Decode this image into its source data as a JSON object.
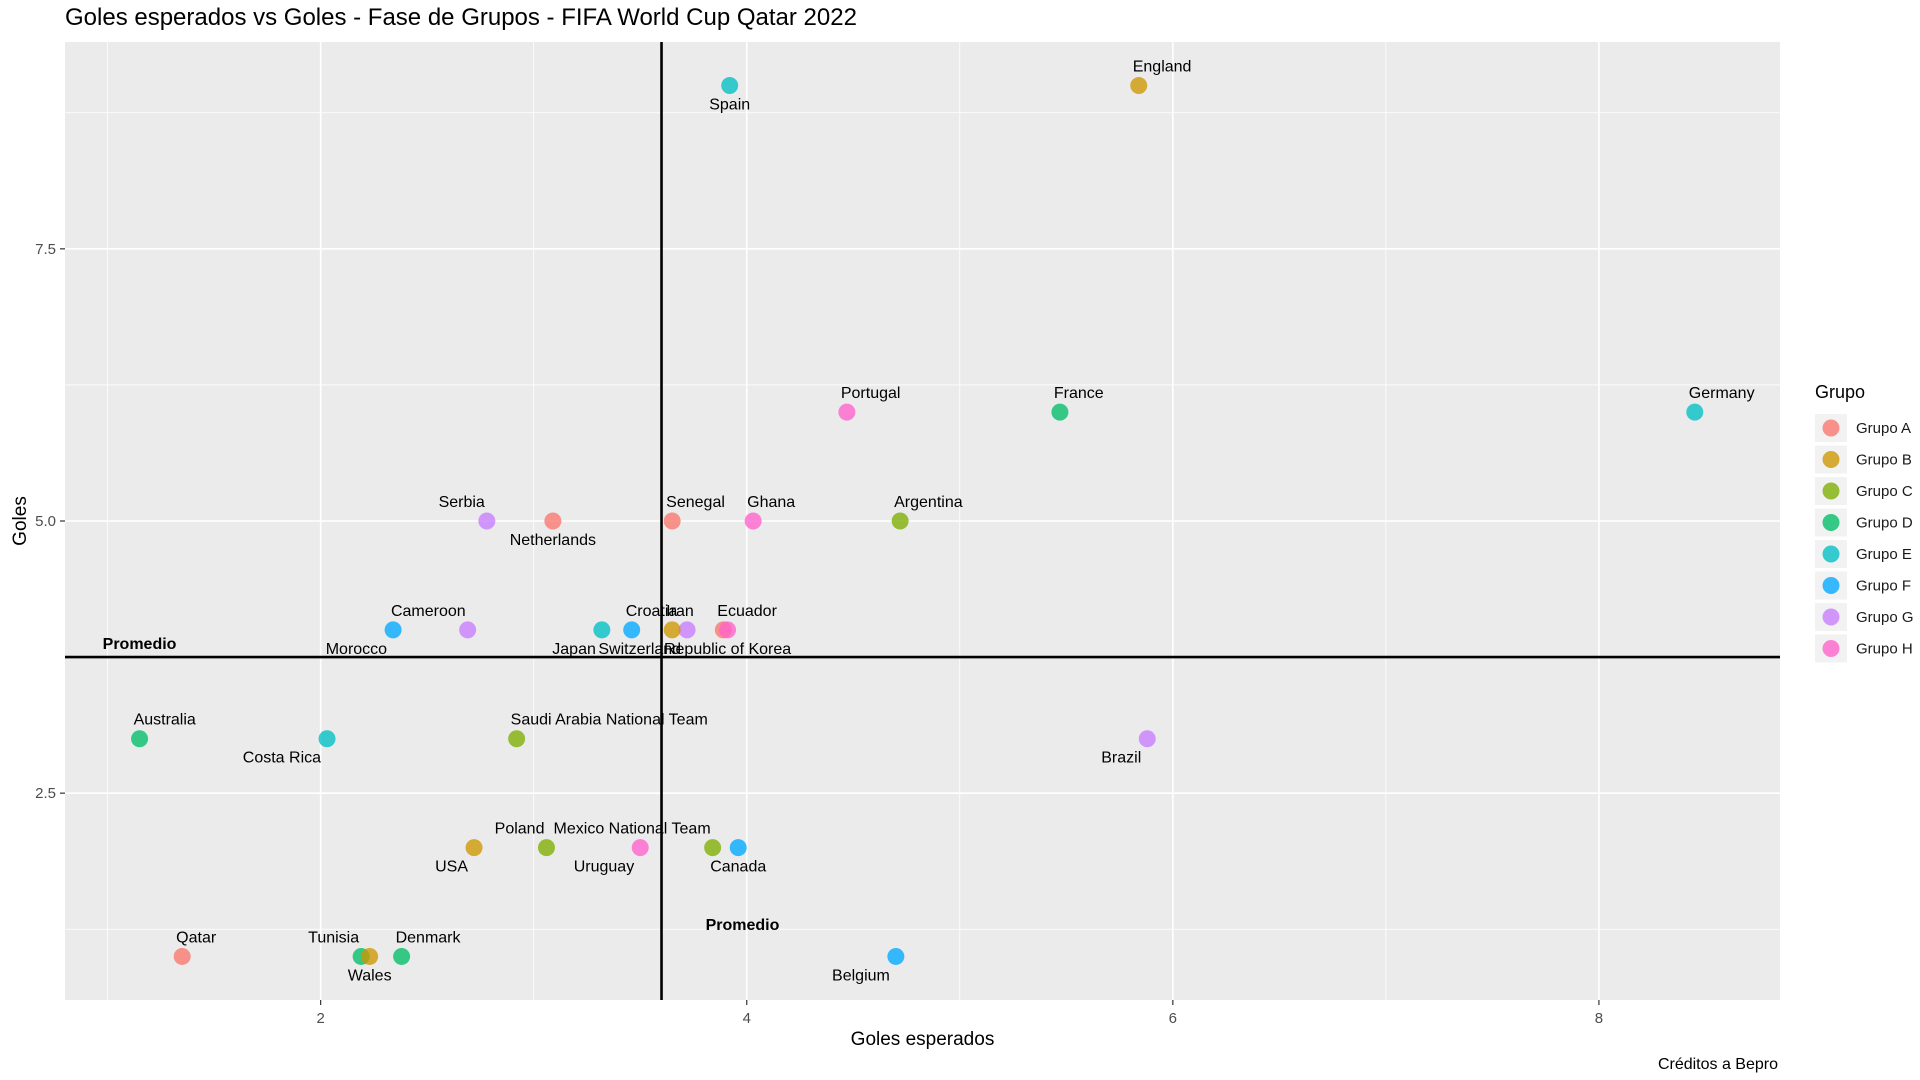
{
  "chart_data": {
    "type": "scatter",
    "title": "Goles esperados vs Goles - Fase de Grupos - FIFA World Cup Qatar 2022",
    "xlabel": "Goles esperados",
    "ylabel": "Goles",
    "caption": "Créditos a Bepro",
    "xlim": [
      0.8,
      8.85
    ],
    "ylim": [
      0.6,
      9.4
    ],
    "x_ticks": [
      2,
      4,
      6,
      8
    ],
    "y_ticks": [
      2.5,
      5.0,
      7.5
    ],
    "x_tick_labels": [
      "2",
      "4",
      "6",
      "8"
    ],
    "y_tick_labels": [
      "2.5",
      "5.0",
      "7.5"
    ],
    "grid": true,
    "legend_title": "Grupo",
    "legend_position": "right",
    "groups": [
      {
        "name": "Grupo A",
        "color": "#F8766D"
      },
      {
        "name": "Grupo B",
        "color": "#CD9600"
      },
      {
        "name": "Grupo C",
        "color": "#7CAE00"
      },
      {
        "name": "Grupo D",
        "color": "#00BE67"
      },
      {
        "name": "Grupo E",
        "color": "#00BFC4"
      },
      {
        "name": "Grupo F",
        "color": "#00A9FF"
      },
      {
        "name": "Grupo G",
        "color": "#C77CFF"
      },
      {
        "name": "Grupo H",
        "color": "#FF61CC"
      }
    ],
    "mean_lines": {
      "x": 3.6,
      "y": 3.75,
      "label_x": "Promedio",
      "label_y": "Promedio"
    },
    "points": [
      {
        "team": "Spain",
        "group": "Grupo E",
        "x": 3.92,
        "y": 9.0,
        "label_pos": "below"
      },
      {
        "team": "England",
        "group": "Grupo B",
        "x": 5.84,
        "y": 9.0,
        "label_pos": "above"
      },
      {
        "team": "Portugal",
        "group": "Grupo H",
        "x": 4.47,
        "y": 6.0,
        "label_pos": "above"
      },
      {
        "team": "France",
        "group": "Grupo D",
        "x": 5.47,
        "y": 6.0,
        "label_pos": "above"
      },
      {
        "team": "Germany",
        "group": "Grupo E",
        "x": 8.45,
        "y": 6.0,
        "label_pos": "above"
      },
      {
        "team": "Serbia",
        "group": "Grupo G",
        "x": 2.78,
        "y": 5.0,
        "label_pos": "above-left"
      },
      {
        "team": "Netherlands",
        "group": "Grupo A",
        "x": 3.09,
        "y": 5.0,
        "label_pos": "below"
      },
      {
        "team": "Senegal",
        "group": "Grupo A",
        "x": 3.65,
        "y": 5.0,
        "label_pos": "above"
      },
      {
        "team": "Ghana",
        "group": "Grupo H",
        "x": 4.03,
        "y": 5.0,
        "label_pos": "above"
      },
      {
        "team": "Argentina",
        "group": "Grupo C",
        "x": 4.72,
        "y": 5.0,
        "label_pos": "above"
      },
      {
        "team": "Morocco",
        "group": "Grupo F",
        "x": 2.34,
        "y": 4.0,
        "label_pos": "below-left"
      },
      {
        "team": "Cameroon",
        "group": "Grupo G",
        "x": 2.69,
        "y": 4.0,
        "label_pos": "above-left"
      },
      {
        "team": "Japan",
        "group": "Grupo E",
        "x": 3.32,
        "y": 4.0,
        "label_pos": "below-left"
      },
      {
        "team": "Croatia",
        "group": "Grupo F",
        "x": 3.46,
        "y": 4.0,
        "label_pos": "above"
      },
      {
        "team": "Switzerland",
        "group": "Grupo G",
        "x": 3.72,
        "y": 4.0,
        "label_pos": "below-left"
      },
      {
        "team": "Iran",
        "group": "Grupo B",
        "x": 3.65,
        "y": 4.0,
        "label_pos": "above"
      },
      {
        "team": "Ecuador",
        "group": "Grupo A",
        "x": 3.89,
        "y": 4.0,
        "label_pos": "above"
      },
      {
        "team": "Republic of Korea",
        "group": "Grupo H",
        "x": 3.91,
        "y": 4.0,
        "label_pos": "below"
      },
      {
        "team": "Australia",
        "group": "Grupo D",
        "x": 1.15,
        "y": 3.0,
        "label_pos": "above"
      },
      {
        "team": "Costa Rica",
        "group": "Grupo E",
        "x": 2.03,
        "y": 3.0,
        "label_pos": "below-left"
      },
      {
        "team": "Saudi Arabia National Team",
        "group": "Grupo C",
        "x": 2.92,
        "y": 3.0,
        "label_pos": "above"
      },
      {
        "team": "Brazil",
        "group": "Grupo G",
        "x": 5.88,
        "y": 3.0,
        "label_pos": "below-left"
      },
      {
        "team": "USA",
        "group": "Grupo B",
        "x": 2.72,
        "y": 2.0,
        "label_pos": "below-left"
      },
      {
        "team": "Poland",
        "group": "Grupo C",
        "x": 3.06,
        "y": 2.0,
        "label_pos": "above-left"
      },
      {
        "team": "Uruguay",
        "group": "Grupo H",
        "x": 3.5,
        "y": 2.0,
        "label_pos": "below-left"
      },
      {
        "team": "Mexico National Team",
        "group": "Grupo C",
        "x": 3.84,
        "y": 2.0,
        "label_pos": "above-left"
      },
      {
        "team": "Canada",
        "group": "Grupo F",
        "x": 3.96,
        "y": 2.0,
        "label_pos": "below"
      },
      {
        "team": "Qatar",
        "group": "Grupo A",
        "x": 1.35,
        "y": 1.0,
        "label_pos": "above"
      },
      {
        "team": "Tunisia",
        "group": "Grupo D",
        "x": 2.19,
        "y": 1.0,
        "label_pos": "above-left"
      },
      {
        "team": "Wales",
        "group": "Grupo B",
        "x": 2.23,
        "y": 1.0,
        "label_pos": "below"
      },
      {
        "team": "Denmark",
        "group": "Grupo D",
        "x": 2.38,
        "y": 1.0,
        "label_pos": "above"
      },
      {
        "team": "Belgium",
        "group": "Grupo F",
        "x": 4.7,
        "y": 1.0,
        "label_pos": "below-left"
      }
    ]
  }
}
